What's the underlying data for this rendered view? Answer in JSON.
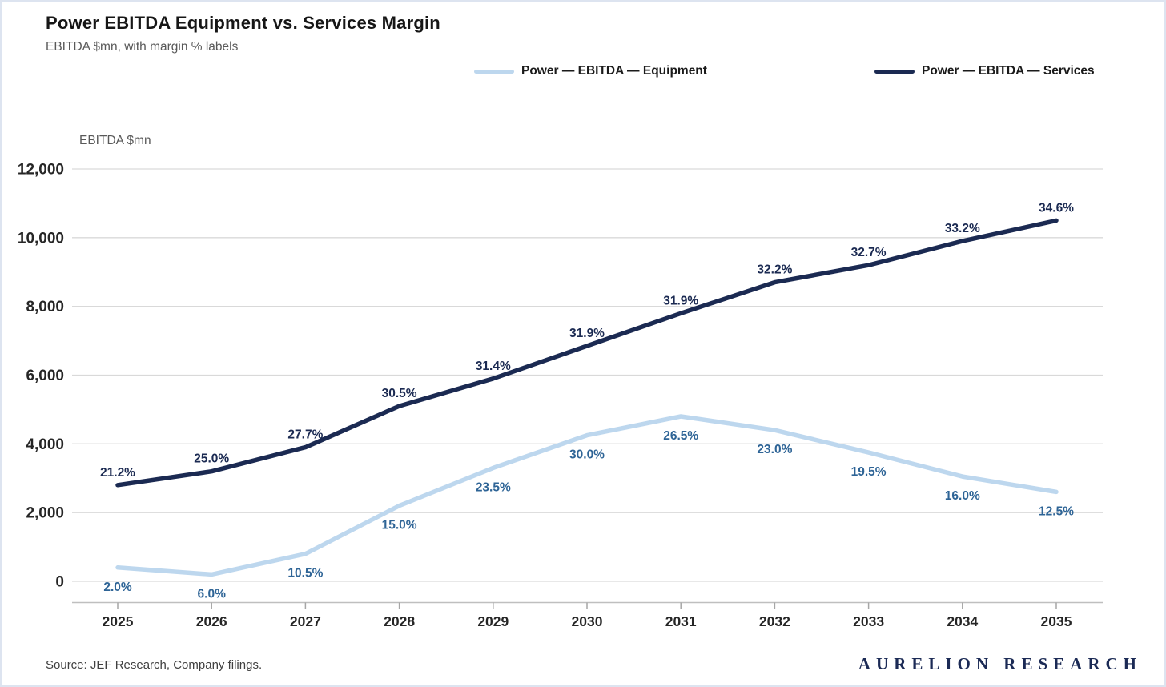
{
  "page": {
    "title": "Power EBITDA Equipment vs. Services Margin",
    "subtitle": "EBITDA $mn, with margin % labels",
    "source": "Source: JEF Research, Company filings.",
    "brand": "AURELION RESEARCH"
  },
  "legend": [
    {
      "label": "Power — EBITDA — Equipment",
      "color": "#bdd7ee"
    },
    {
      "label": "Power — EBITDA — Services",
      "color": "#1b2a52"
    }
  ],
  "chart_data": {
    "type": "line",
    "title": "Power EBITDA Equipment vs. Services Margin",
    "subtitle": "EBITDA $mn, with margin % labels",
    "x": [
      2025,
      2026,
      2027,
      2028,
      2029,
      2030,
      2031,
      2032,
      2033,
      2034,
      2035
    ],
    "series": [
      {
        "name": "Power — EBITDA — Equipment",
        "color": "#bdd7ee",
        "values": [
          400,
          200,
          800,
          2200,
          3300,
          4250,
          4800,
          4400,
          3750,
          3050,
          2600
        ],
        "labels": [
          "2.0%",
          "6.0%",
          "10.5%",
          "15.0%",
          "23.5%",
          "30.0%",
          "26.5%",
          "23.0%",
          "19.5%",
          "16.0%",
          "12.5%"
        ],
        "label_color": "#2e6496",
        "label_position": "below"
      },
      {
        "name": "Power — EBITDA — Services",
        "color": "#1b2a52",
        "values": [
          2800,
          3200,
          3900,
          5100,
          5900,
          6850,
          7800,
          8700,
          9200,
          9900,
          10500
        ],
        "labels": [
          "21.2%",
          "25.0%",
          "27.7%",
          "30.5%",
          "31.4%",
          "31.9%",
          "31.9%",
          "32.2%",
          "32.7%",
          "33.2%",
          "34.6%"
        ],
        "label_color": "#1b2a52",
        "label_position": "above"
      }
    ],
    "xlabel": "",
    "ylabel": "EBITDA $mn",
    "ylim": [
      0,
      12000
    ],
    "ytick_step": 2000,
    "yticks": [
      "0",
      "2,000",
      "4,000",
      "6,000",
      "8,000",
      "10,000",
      "12,000"
    ],
    "grid": true,
    "legend_position": "top"
  },
  "colors": {
    "gridline": "#d9d9d9",
    "axis_line": "#bfbfbf",
    "tick_mark": "#a6a6a6",
    "tick_label": "#262626",
    "axis_title": "#595959"
  }
}
